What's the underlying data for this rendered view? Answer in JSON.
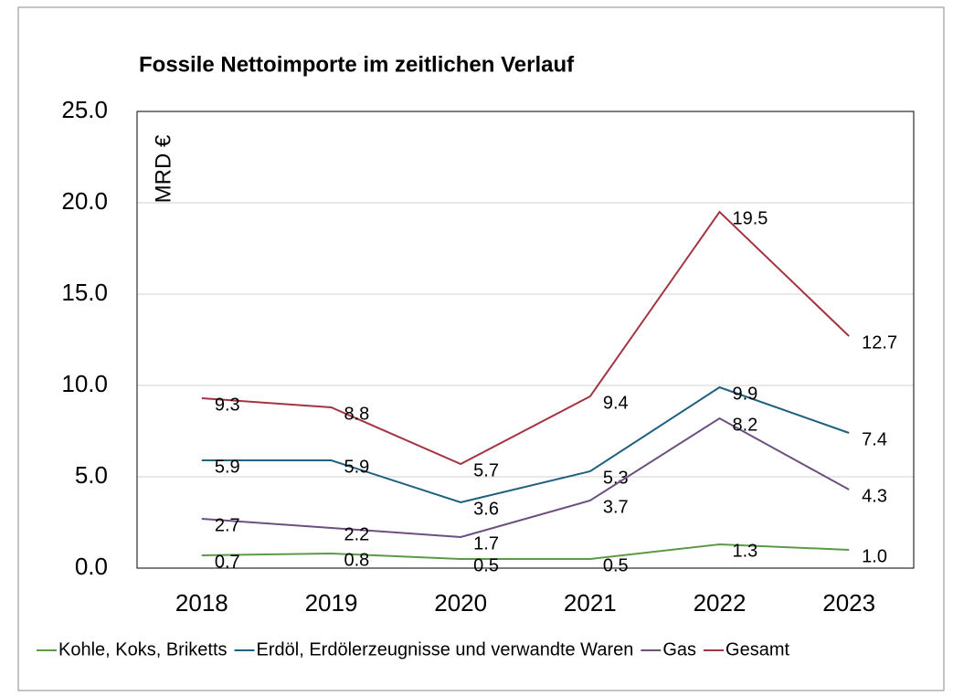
{
  "chart_data": {
    "type": "line",
    "title": "Fossile Nettoimporte im zeitlichen Verlauf",
    "y_label": "MRD €",
    "categories": [
      "2018",
      "2019",
      "2020",
      "2021",
      "2022",
      "2023"
    ],
    "series": [
      {
        "name": "Kohle, Koks, Briketts",
        "color": "#5b9a48",
        "values": [
          0.7,
          0.8,
          0.5,
          0.5,
          1.3,
          1.0
        ],
        "value_labels": [
          "0.7",
          "0.8",
          "0.5",
          "0.5",
          "1.3",
          "1.0"
        ]
      },
      {
        "name": "Erdöl, Erdölerzeugnisse und verwandte Waren",
        "color": "#1f607f",
        "values": [
          5.9,
          5.9,
          3.6,
          5.3,
          9.9,
          7.4
        ]
      },
      {
        "name": "Gas",
        "color": "#6b5080",
        "values": [
          2.7,
          2.2,
          1.7,
          3.7,
          8.2,
          4.3
        ]
      },
      {
        "name": "Gesamt",
        "color": "#a33441",
        "values": [
          9.3,
          8.8,
          5.7,
          9.4,
          19.5,
          12.7
        ]
      }
    ],
    "ylim": [
      0,
      25
    ],
    "yticks": [
      {
        "value": 0,
        "label": "0.0"
      },
      {
        "value": 5,
        "label": "5.0"
      },
      {
        "value": 10,
        "label": "10.0"
      },
      {
        "value": 15,
        "label": "15.0"
      },
      {
        "value": 20,
        "label": "20.0"
      },
      {
        "value": 25,
        "label": "25.0"
      }
    ],
    "grid": true,
    "legend": "bottom"
  }
}
